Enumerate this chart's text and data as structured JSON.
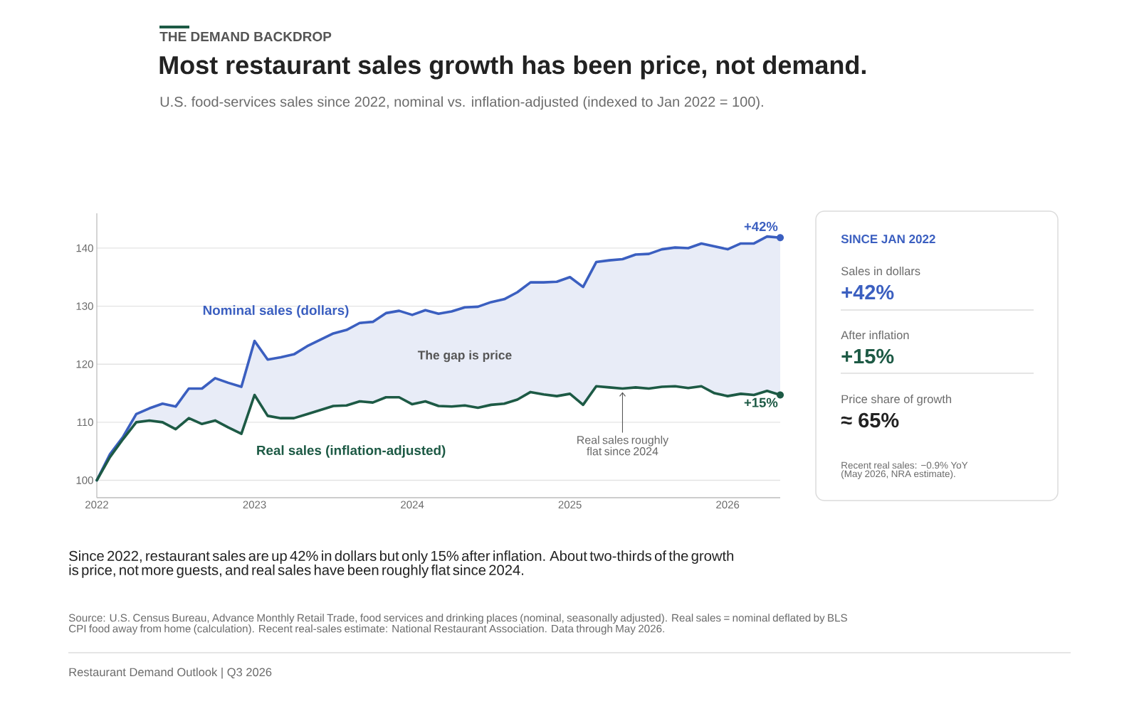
{
  "chart_data": [
    {
      "type": "line",
      "title": "Most restaurant sales growth has been price, not demand.",
      "subtitle": "U.S. food-services sales since 2022, nominal vs. inflation-adjusted (indexed to Jan 2022 = 100).",
      "x": [
        "2022-01",
        "2022-02",
        "2022-03",
        "2022-04",
        "2022-05",
        "2022-06",
        "2022-07",
        "2022-08",
        "2022-09",
        "2022-10",
        "2022-11",
        "2022-12",
        "2023-01",
        "2023-02",
        "2023-03",
        "2023-04",
        "2023-05",
        "2023-06",
        "2023-07",
        "2023-08",
        "2023-09",
        "2023-10",
        "2023-11",
        "2023-12",
        "2024-01",
        "2024-02",
        "2024-03",
        "2024-04",
        "2024-05",
        "2024-06",
        "2024-07",
        "2024-08",
        "2024-09",
        "2024-10",
        "2024-11",
        "2024-12",
        "2025-01",
        "2025-02",
        "2025-03",
        "2025-04",
        "2025-05",
        "2025-06",
        "2025-07",
        "2025-08",
        "2025-09",
        "2025-10",
        "2025-11",
        "2025-12",
        "2026-01",
        "2026-02",
        "2026-03",
        "2026-04",
        "2026-05"
      ],
      "series": [
        {
          "name": "Nominal sales (dollars)",
          "color": "#3b5fc0",
          "values": [
            100,
            104.5,
            107.5,
            111.4,
            112.4,
            113.2,
            112.7,
            115.8,
            115.8,
            117.6,
            116.8,
            116.1,
            124.0,
            120.8,
            121.2,
            121.7,
            123.1,
            124.2,
            125.3,
            125.9,
            127.1,
            127.3,
            128.8,
            129.2,
            128.5,
            129.3,
            128.7,
            129.1,
            129.8,
            129.9,
            130.7,
            131.2,
            132.4,
            134.1,
            134.1,
            134.2,
            135.0,
            133.3,
            137.6,
            137.9,
            138.1,
            138.9,
            139.0,
            139.8,
            140.1,
            140.0,
            140.8,
            140.3,
            139.8,
            140.8,
            140.8,
            142.0,
            141.8
          ],
          "upper": [
            100,
            104.5,
            107.5,
            111.4,
            112.4,
            113.2,
            112.7,
            115.8,
            115.8,
            117.6,
            116.8,
            116.1,
            124.0,
            120.8,
            121.2,
            121.7,
            123.1,
            124.2,
            125.3,
            125.9,
            127.1,
            127.3,
            128.8,
            129.2,
            128.5,
            129.3,
            128.7,
            129.1,
            129.8,
            129.9,
            130.7,
            131.2,
            132.4,
            134.1,
            134.1,
            134.2,
            135.0,
            133.3,
            137.6,
            137.9,
            138.1,
            138.9,
            139.0,
            139.8,
            140.1,
            140.0,
            140.8,
            140.3,
            139.8,
            140.8,
            140.8,
            142.0,
            141.8
          ],
          "lower": [
            100,
            104.0,
            107.1,
            110.0,
            110.3,
            110.0,
            108.8,
            110.7,
            109.7,
            110.3,
            109.1,
            108.0,
            114.7,
            111.1,
            110.7,
            110.7,
            111.4,
            112.1,
            112.8,
            112.9,
            113.6,
            113.4,
            114.3,
            114.3,
            113.1,
            113.6,
            112.8,
            112.7,
            112.9,
            112.5,
            113.0,
            113.2,
            113.9,
            115.2,
            114.8,
            114.5,
            114.9,
            113.0,
            116.2,
            116.0,
            115.8,
            116.0,
            115.8,
            116.1,
            116.2,
            115.9,
            116.2,
            115.0,
            114.5,
            114.9,
            114.7,
            115.4,
            114.7
          ]
        },
        {
          "name": "Real sales (inflation-adjusted)",
          "color": "#1d5a45",
          "values": [
            100,
            104.0,
            107.1,
            110.0,
            110.3,
            110.0,
            108.8,
            110.7,
            109.7,
            110.3,
            109.1,
            108.0,
            114.7,
            111.1,
            110.7,
            110.7,
            111.4,
            112.1,
            112.8,
            112.9,
            113.6,
            113.4,
            114.3,
            114.3,
            113.1,
            113.6,
            112.8,
            112.7,
            112.9,
            112.5,
            113.0,
            113.2,
            113.9,
            115.2,
            114.8,
            114.5,
            114.9,
            113.0,
            116.2,
            116.0,
            115.8,
            116.0,
            115.8,
            116.1,
            116.2,
            115.9,
            116.2,
            115.0,
            114.5,
            114.9,
            114.7,
            115.4,
            114.7
          ]
        }
      ],
      "xlim": [
        "2022-01",
        "2026-05"
      ],
      "xticks": [
        {
          "value": "2022-01",
          "label": "2022"
        },
        {
          "value": "2023-01",
          "label": "2023"
        },
        {
          "value": "2024-01",
          "label": "2024"
        },
        {
          "value": "2025-01",
          "label": "2025"
        },
        {
          "value": "2026-01",
          "label": "2026"
        }
      ],
      "ylim": [
        97,
        146
      ],
      "yticks": [
        100,
        110,
        120,
        130,
        140
      ],
      "grid": "y",
      "annotations": [
        "THE DEMAND BACKDROP",
        "The gap is price",
        {
          "text": "+42%",
          "x": "2026-05",
          "y": 141.8
        },
        {
          "text": "+15%",
          "x": "2026-05",
          "y": 114.7
        },
        {
          "text": "Real sales roughly flat since 2024",
          "x": "2025-05",
          "y": 115.8
        },
        "Since 2022, restaurant sales are up 42% in dollars but only 15% after inflation. About two-thirds of the growth is price, not more guests, and real sales have been roughly flat since 2024.",
        "Source: U.S. Census Bureau, Advance Monthly Retail Trade, food services and drinking places (nominal, seasonally adjusted). Real sales = nominal deflated by BLS CPI food away from home (calculation). Recent real-sales estimate: National Restaurant Association. Data through May 2026.",
        "Restaurant Demand Outlook | Q3 2026"
      ]
    },
    {
      "type": "other",
      "title": "SINCE JAN 2022",
      "annotations": [
        "Sales in dollars",
        "+42%",
        "After inflation",
        "+15%",
        "Price share of growth",
        "≈ 65%",
        "Recent real sales: −0.9% YoY (May 2026, NRA estimate)."
      ]
    }
  ]
}
